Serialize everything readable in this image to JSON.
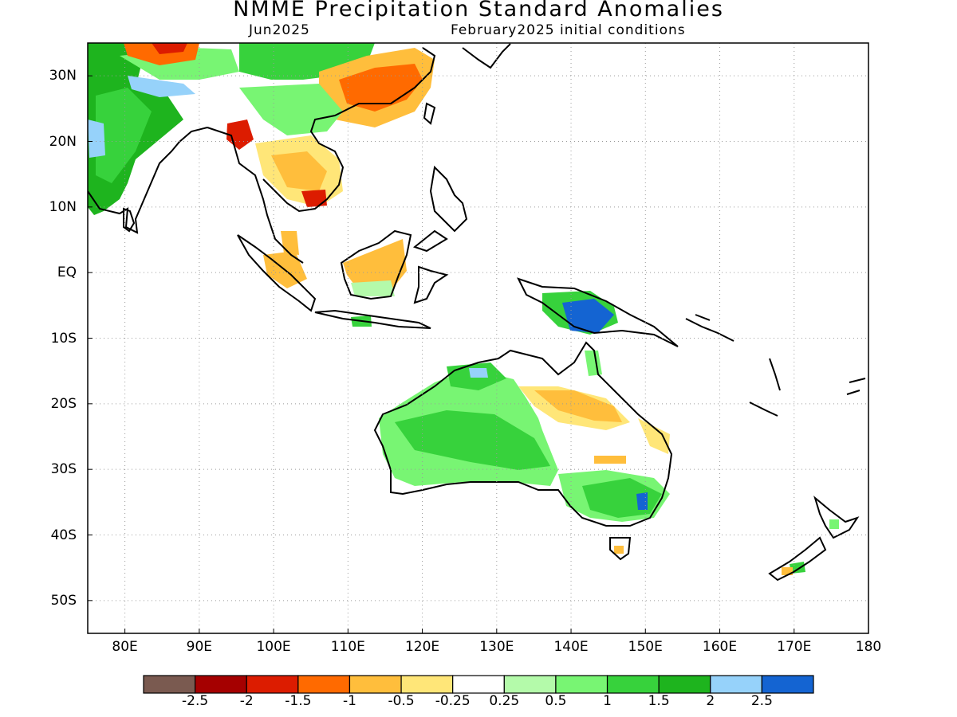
{
  "title": "NMME Precipitation Standard Anomalies",
  "subtitle_left": "Jun2025",
  "subtitle_right": "February2025 initial conditions",
  "map": {
    "lon_range": [
      75,
      180
    ],
    "lat_range": [
      -55,
      35
    ],
    "grid": "dotted",
    "lat_ticks": [
      {
        "value": 30,
        "label": "30N"
      },
      {
        "value": 20,
        "label": "20N"
      },
      {
        "value": 10,
        "label": "10N"
      },
      {
        "value": 0,
        "label": "EQ"
      },
      {
        "value": -10,
        "label": "10S"
      },
      {
        "value": -20,
        "label": "20S"
      },
      {
        "value": -30,
        "label": "30S"
      },
      {
        "value": -40,
        "label": "40S"
      },
      {
        "value": -50,
        "label": "50S"
      }
    ],
    "lon_ticks": [
      {
        "value": 80,
        "label": "80E"
      },
      {
        "value": 90,
        "label": "90E"
      },
      {
        "value": 100,
        "label": "100E"
      },
      {
        "value": 110,
        "label": "110E"
      },
      {
        "value": 120,
        "label": "120E"
      },
      {
        "value": 130,
        "label": "130E"
      },
      {
        "value": 140,
        "label": "140E"
      },
      {
        "value": 150,
        "label": "150E"
      },
      {
        "value": 160,
        "label": "160E"
      },
      {
        "value": 170,
        "label": "170E"
      },
      {
        "value": 180,
        "label": "180"
      }
    ]
  },
  "colorbar": {
    "colors": [
      "#7a5a50",
      "#a50000",
      "#dc1c00",
      "#ff6a00",
      "#ffbe3c",
      "#ffe678",
      "#ffffff",
      "#b4faaa",
      "#78f573",
      "#37d23c",
      "#1eb41e",
      "#96d2fa",
      "#1464d2"
    ],
    "labels": [
      "-2.5",
      "-2",
      "-1.5",
      "-1",
      "-0.5",
      "-0.25",
      "0.25",
      "0.5",
      "1",
      "1.5",
      "2",
      "2.5"
    ]
  }
}
